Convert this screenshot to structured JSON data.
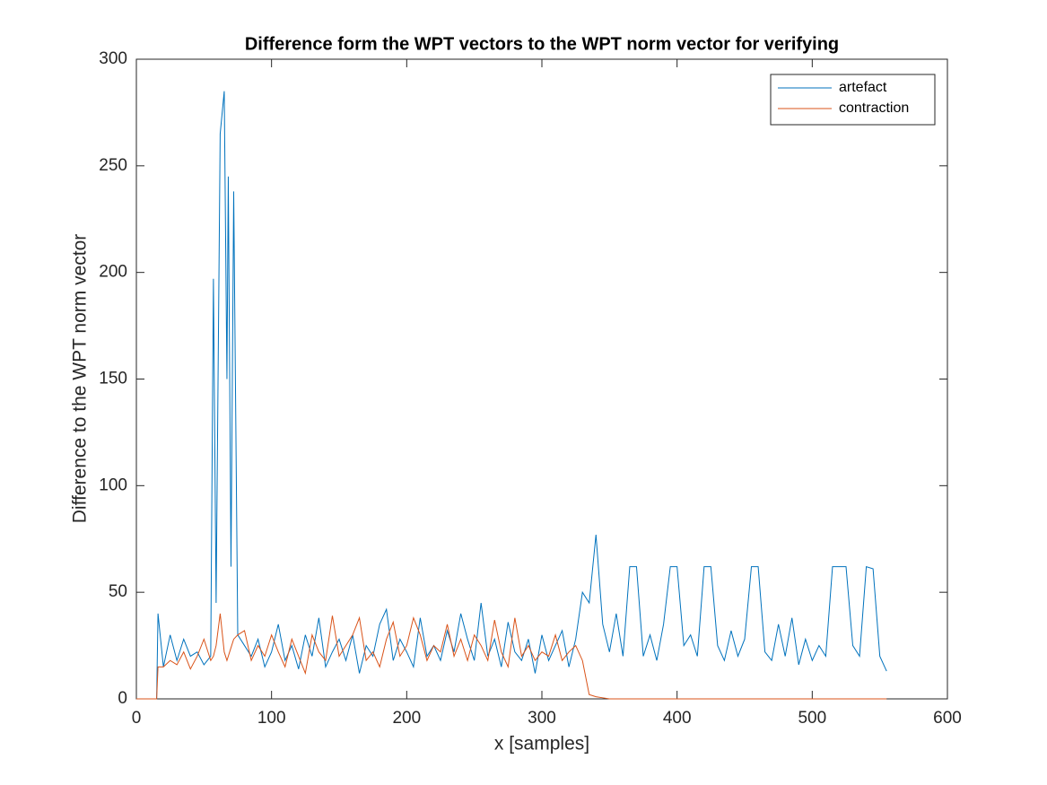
{
  "chart_data": {
    "type": "line",
    "title": "Difference form the WPT vectors to the WPT norm vector for verifying",
    "x_label": "x [samples]",
    "y_label": "Difference to the WPT norm vector",
    "xlim": [
      0,
      600
    ],
    "xticks": [
      0,
      100,
      200,
      300,
      400,
      500,
      600
    ],
    "ylim": [
      0,
      300
    ],
    "yticks": [
      0,
      50,
      100,
      150,
      200,
      250,
      300
    ],
    "grid": false,
    "legend_position": "northeast",
    "x": [
      0,
      5,
      10,
      15,
      16,
      20,
      25,
      30,
      35,
      40,
      45,
      50,
      55,
      57,
      59,
      62,
      65,
      67,
      68,
      70,
      72,
      75,
      80,
      85,
      90,
      95,
      100,
      105,
      110,
      115,
      120,
      125,
      130,
      135,
      140,
      145,
      150,
      155,
      160,
      165,
      170,
      175,
      180,
      185,
      190,
      195,
      200,
      205,
      210,
      215,
      220,
      225,
      230,
      235,
      240,
      245,
      250,
      255,
      260,
      265,
      270,
      275,
      280,
      285,
      290,
      295,
      300,
      305,
      310,
      315,
      320,
      325,
      330,
      335,
      340,
      345,
      350,
      355,
      360,
      365,
      370,
      375,
      380,
      385,
      390,
      395,
      400,
      405,
      410,
      415,
      420,
      425,
      430,
      435,
      440,
      445,
      450,
      455,
      460,
      465,
      470,
      475,
      480,
      485,
      490,
      495,
      500,
      505,
      510,
      515,
      520,
      525,
      530,
      535,
      540,
      545,
      550,
      555
    ],
    "series": [
      {
        "name": "artefact",
        "color": "#0072BD",
        "values": [
          0,
          0,
          0,
          0,
          40,
          15,
          30,
          18,
          28,
          20,
          22,
          16,
          20,
          197,
          45,
          265,
          285,
          150,
          245,
          62,
          238,
          30,
          25,
          20,
          28,
          15,
          22,
          35,
          18,
          25,
          14,
          30,
          20,
          38,
          15,
          22,
          28,
          18,
          30,
          12,
          25,
          20,
          35,
          42,
          18,
          28,
          22,
          15,
          38,
          20,
          25,
          18,
          32,
          22,
          40,
          28,
          18,
          45,
          20,
          28,
          15,
          36,
          22,
          18,
          28,
          12,
          30,
          18,
          25,
          32,
          15,
          28,
          50,
          45,
          77,
          35,
          22,
          40,
          20,
          62,
          62,
          20,
          30,
          18,
          35,
          62,
          62,
          25,
          30,
          20,
          62,
          62,
          25,
          18,
          32,
          20,
          28,
          62,
          62,
          22,
          18,
          35,
          20,
          38,
          16,
          28,
          18,
          25,
          20,
          62,
          62,
          62,
          25,
          20,
          62,
          61,
          20,
          13
        ]
      },
      {
        "name": "contraction",
        "color": "#D95319",
        "values": [
          0,
          0,
          0,
          0,
          15,
          15,
          18,
          16,
          22,
          14,
          20,
          28,
          18,
          20,
          25,
          40,
          22,
          18,
          20,
          24,
          28,
          30,
          32,
          18,
          25,
          20,
          30,
          22,
          15,
          28,
          20,
          12,
          30,
          22,
          18,
          39,
          20,
          25,
          30,
          38,
          18,
          22,
          15,
          28,
          36,
          20,
          25,
          38,
          30,
          18,
          25,
          22,
          35,
          20,
          28,
          18,
          30,
          25,
          18,
          37,
          22,
          15,
          38,
          20,
          25,
          18,
          22,
          20,
          30,
          18,
          22,
          25,
          18,
          2,
          1,
          0.5,
          0,
          0,
          0,
          0,
          0,
          0,
          0,
          0,
          0,
          0,
          0,
          0,
          0,
          0,
          0,
          0,
          0,
          0,
          0,
          0,
          0,
          0,
          0,
          0,
          0,
          0,
          0,
          0,
          0,
          0,
          0,
          0,
          0,
          0,
          0,
          0,
          0,
          0,
          0,
          0,
          0,
          0
        ]
      }
    ]
  }
}
